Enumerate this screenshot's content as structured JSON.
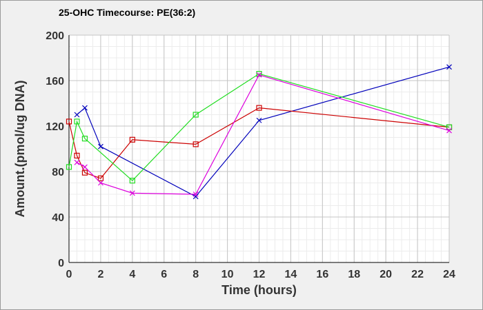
{
  "chart_data": {
    "type": "line",
    "title": "25-OHC Timecourse: PE(36:2)",
    "xlabel": "Time (hours)",
    "ylabel": "Amount.(pmol/ug DNA)",
    "xlim": [
      0,
      24
    ],
    "ylim": [
      0,
      200
    ],
    "xticks": [
      0,
      2,
      4,
      6,
      8,
      10,
      12,
      14,
      16,
      18,
      20,
      22,
      24
    ],
    "yticks": [
      0,
      40,
      80,
      120,
      160,
      200
    ],
    "grid": true,
    "legend": "none",
    "series": [
      {
        "color": "#0000bb",
        "marker": "x",
        "x": [
          0.5,
          1,
          2,
          8,
          12,
          24
        ],
        "y": [
          130,
          136,
          102,
          58,
          125,
          172
        ]
      },
      {
        "color": "#cc0000",
        "marker": "square",
        "x": [
          0,
          0.5,
          1,
          2,
          4,
          8,
          12,
          24
        ],
        "y": [
          124,
          94,
          79,
          74,
          108,
          104,
          136,
          119
        ]
      },
      {
        "color": "#22dd22",
        "marker": "square",
        "x": [
          0,
          0.5,
          1,
          4,
          8,
          12,
          24
        ],
        "y": [
          84,
          124,
          109,
          72,
          130,
          166,
          119
        ]
      },
      {
        "color": "#dd00dd",
        "marker": "x",
        "x": [
          0.5,
          1,
          2,
          4,
          8,
          12,
          24
        ],
        "y": [
          88,
          84,
          70,
          61,
          60,
          165,
          116
        ]
      }
    ]
  }
}
